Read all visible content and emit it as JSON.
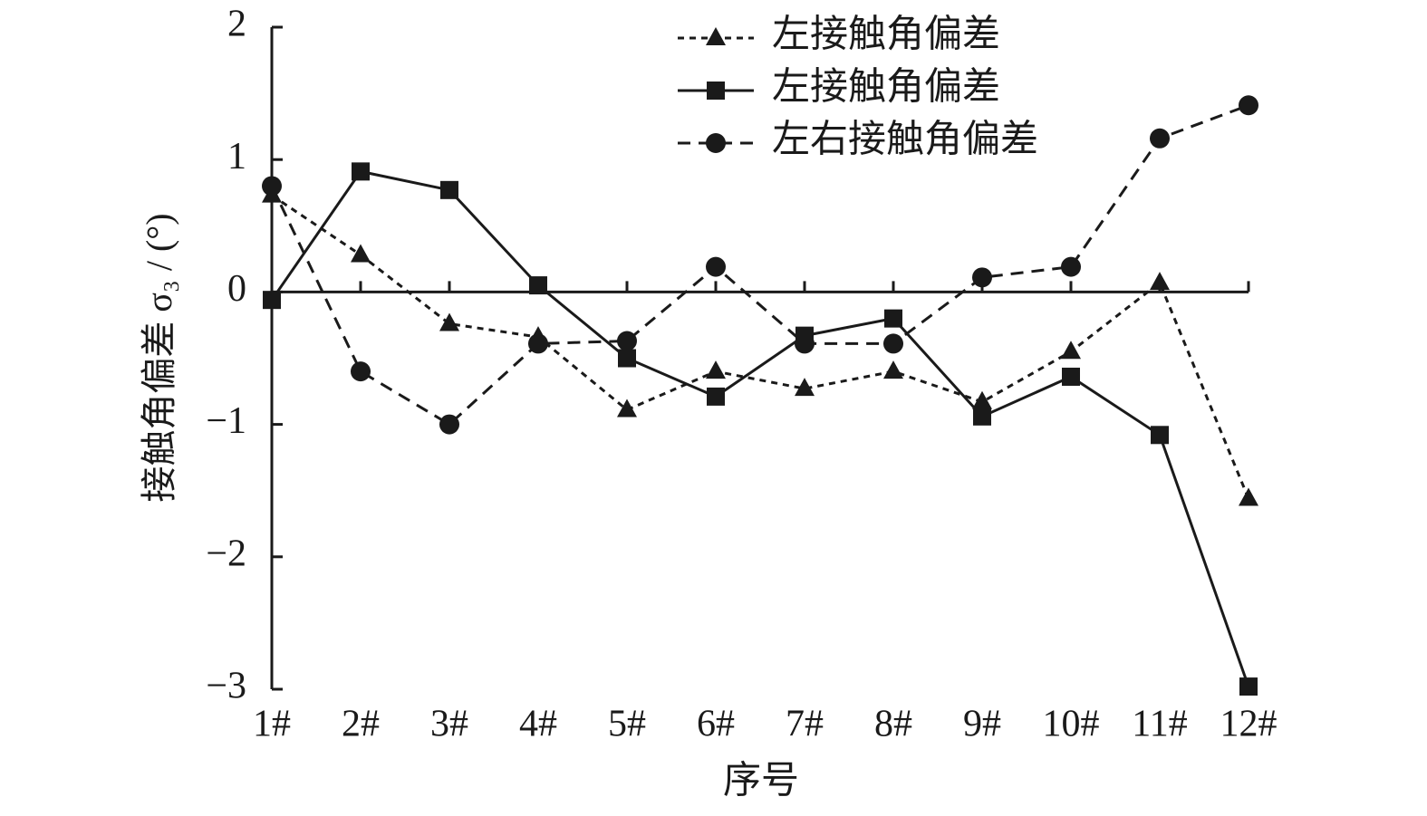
{
  "chart_data": {
    "type": "line",
    "y_label": "接触角偏差 σ₃ / (°)",
    "x_label": "序号",
    "categories": [
      "1#",
      "2#",
      "3#",
      "4#",
      "5#",
      "6#",
      "7#",
      "8#",
      "9#",
      "10#",
      "11#",
      "12#"
    ],
    "series": [
      {
        "name": "左接触角偏差",
        "color": "#1a1a1a",
        "marker": "triangle",
        "linestyle": "dotted",
        "values": [
          0.73,
          0.28,
          -0.24,
          -0.34,
          -0.89,
          -0.6,
          -0.73,
          -0.6,
          -0.83,
          -0.45,
          0.07,
          -1.56
        ]
      },
      {
        "name": "左接触角偏差",
        "color": "#1a1a1a",
        "marker": "square",
        "linestyle": "solid",
        "values": [
          -0.06,
          0.91,
          0.77,
          0.05,
          -0.5,
          -0.79,
          -0.33,
          -0.2,
          -0.94,
          -0.64,
          -1.08,
          -2.98
        ]
      },
      {
        "name": "左右接触角偏差",
        "color": "#1a1a1a",
        "marker": "circle",
        "linestyle": "dashed",
        "values": [
          0.8,
          -0.6,
          -1.0,
          -0.39,
          -0.37,
          0.19,
          -0.39,
          -0.39,
          0.11,
          0.19,
          1.16,
          1.41
        ]
      }
    ],
    "ylim": [
      -3,
      2
    ],
    "yticks": [
      {
        "value": -3,
        "label": "−3"
      },
      {
        "value": -2,
        "label": "−2"
      },
      {
        "value": -1,
        "label": "−1"
      },
      0,
      1,
      2
    ],
    "legend": "top-right"
  }
}
